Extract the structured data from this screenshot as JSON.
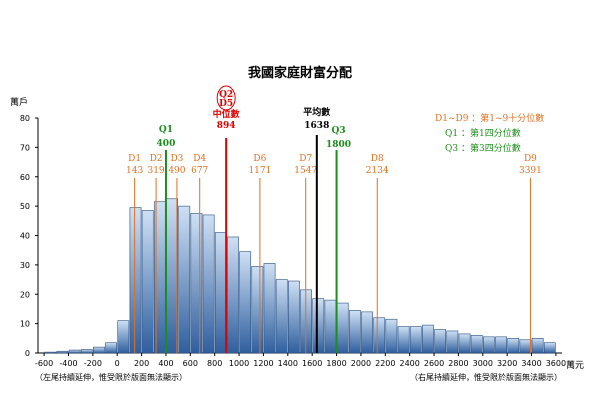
{
  "chart_data": {
    "type": "bar",
    "title": "我國家庭財富分配",
    "ylabel": "萬戶",
    "xunit": "萬元",
    "ylim": [
      0,
      80
    ],
    "yticks": [
      0,
      10,
      20,
      30,
      40,
      50,
      60,
      70,
      80
    ],
    "xlim": [
      -650,
      3650
    ],
    "xticks": [
      -600,
      -400,
      -200,
      0,
      200,
      400,
      600,
      800,
      1000,
      1200,
      1400,
      1600,
      1800,
      2000,
      2200,
      2400,
      2600,
      2800,
      3000,
      3200,
      3400,
      3600
    ],
    "bin_width": 100,
    "bins_start": [
      -600,
      -500,
      -400,
      -300,
      -200,
      -100,
      0,
      100,
      200,
      300,
      400,
      500,
      600,
      700,
      800,
      900,
      1000,
      1100,
      1200,
      1300,
      1400,
      1500,
      1600,
      1700,
      1800,
      1900,
      2000,
      2100,
      2200,
      2300,
      2400,
      2500,
      2600,
      2700,
      2800,
      2900,
      3000,
      3100,
      3200,
      3300,
      3400,
      3500
    ],
    "values": [
      0.3,
      0.6,
      1,
      1.2,
      2,
      3.5,
      11,
      49.5,
      48.5,
      51.5,
      52.5,
      50,
      47.5,
      47,
      41,
      39.5,
      34.5,
      29.5,
      30.5,
      25,
      24.5,
      21.5,
      18.5,
      18,
      17,
      14.5,
      14,
      12,
      11.5,
      9,
      9,
      9.5,
      8,
      7.5,
      6.5,
      6,
      5.5,
      5.5,
      5,
      4.5,
      5,
      3.5
    ],
    "markers": [
      {
        "label": "D1",
        "value": "143",
        "x": 143,
        "kind": "decile",
        "label_level": 1
      },
      {
        "label": "D2",
        "value": "319",
        "x": 319,
        "kind": "decile",
        "label_level": 1
      },
      {
        "label": "Q1",
        "value": "400",
        "x": 400,
        "kind": "quartile",
        "label_level": 0
      },
      {
        "label": "D3",
        "value": "490",
        "x": 490,
        "kind": "decile",
        "label_level": 1
      },
      {
        "label": "D4",
        "value": "677",
        "x": 677,
        "kind": "decile",
        "label_level": 1
      },
      {
        "label": "Q2\nD5\n中位數",
        "value": "894",
        "x": 894,
        "kind": "median",
        "label_level": 0
      },
      {
        "label": "D6",
        "value": "1171",
        "x": 1171,
        "kind": "decile",
        "label_level": 1
      },
      {
        "label": "D7",
        "value": "1547",
        "x": 1547,
        "kind": "decile",
        "label_level": 1
      },
      {
        "label": "平均數",
        "value": "1638",
        "x": 1638,
        "kind": "mean",
        "label_level": 0
      },
      {
        "label": "Q3",
        "value": "1800",
        "x": 1800,
        "kind": "quartile",
        "label_level": 0
      },
      {
        "label": "D8",
        "value": "2134",
        "x": 2134,
        "kind": "decile",
        "label_level": 1
      },
      {
        "label": "D9",
        "value": "3391",
        "x": 3391,
        "kind": "decile",
        "label_level": 1
      }
    ],
    "legend": [
      {
        "text": "D1~D9 ：第1~9十分位數",
        "color": "#e07020"
      },
      {
        "text": "Q1 ：第1四分位數",
        "color": "#1a8f1a"
      },
      {
        "text": "Q3 ：第3四分位數",
        "color": "#1a8f1a"
      }
    ],
    "footnotes": {
      "left": "（左尾持續延伸，惟受限於版面無法顯示）",
      "right": "（右尾持續延伸，惟受限於版面無法顯示）"
    },
    "colors": {
      "bar_top": "#cfe0f4",
      "bar_bottom": "#2f5f9e",
      "decile": "#e07020",
      "quartile": "#1a8f1a",
      "median": "#e00000",
      "mean": "#000000"
    }
  }
}
